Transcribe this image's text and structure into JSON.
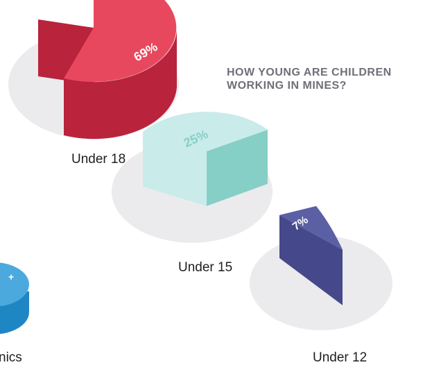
{
  "chart_data": {
    "type": "pie",
    "title_lines": [
      "HOW YOUNG ARE CHILDREN",
      "WORKING IN  MINES?"
    ],
    "categories": [
      "Under 18",
      "Under 15",
      "Under 12"
    ],
    "values": [
      69,
      25,
      7
    ],
    "value_labels": [
      "69%",
      "25%",
      "7%"
    ],
    "partial_label": "nics",
    "colors": {
      "under18_top": "#e8485e",
      "under18_side": "#b9233c",
      "under15_top": "#c9ebea",
      "under15_side": "#86cfc7",
      "under15_label": "#86cfc7",
      "under12_top": "#5b5fa3",
      "under12_side": "#45488a",
      "partial_top": "#4ba9de",
      "partial_side": "#1f86c4",
      "base_disc": "#ebebed"
    }
  }
}
